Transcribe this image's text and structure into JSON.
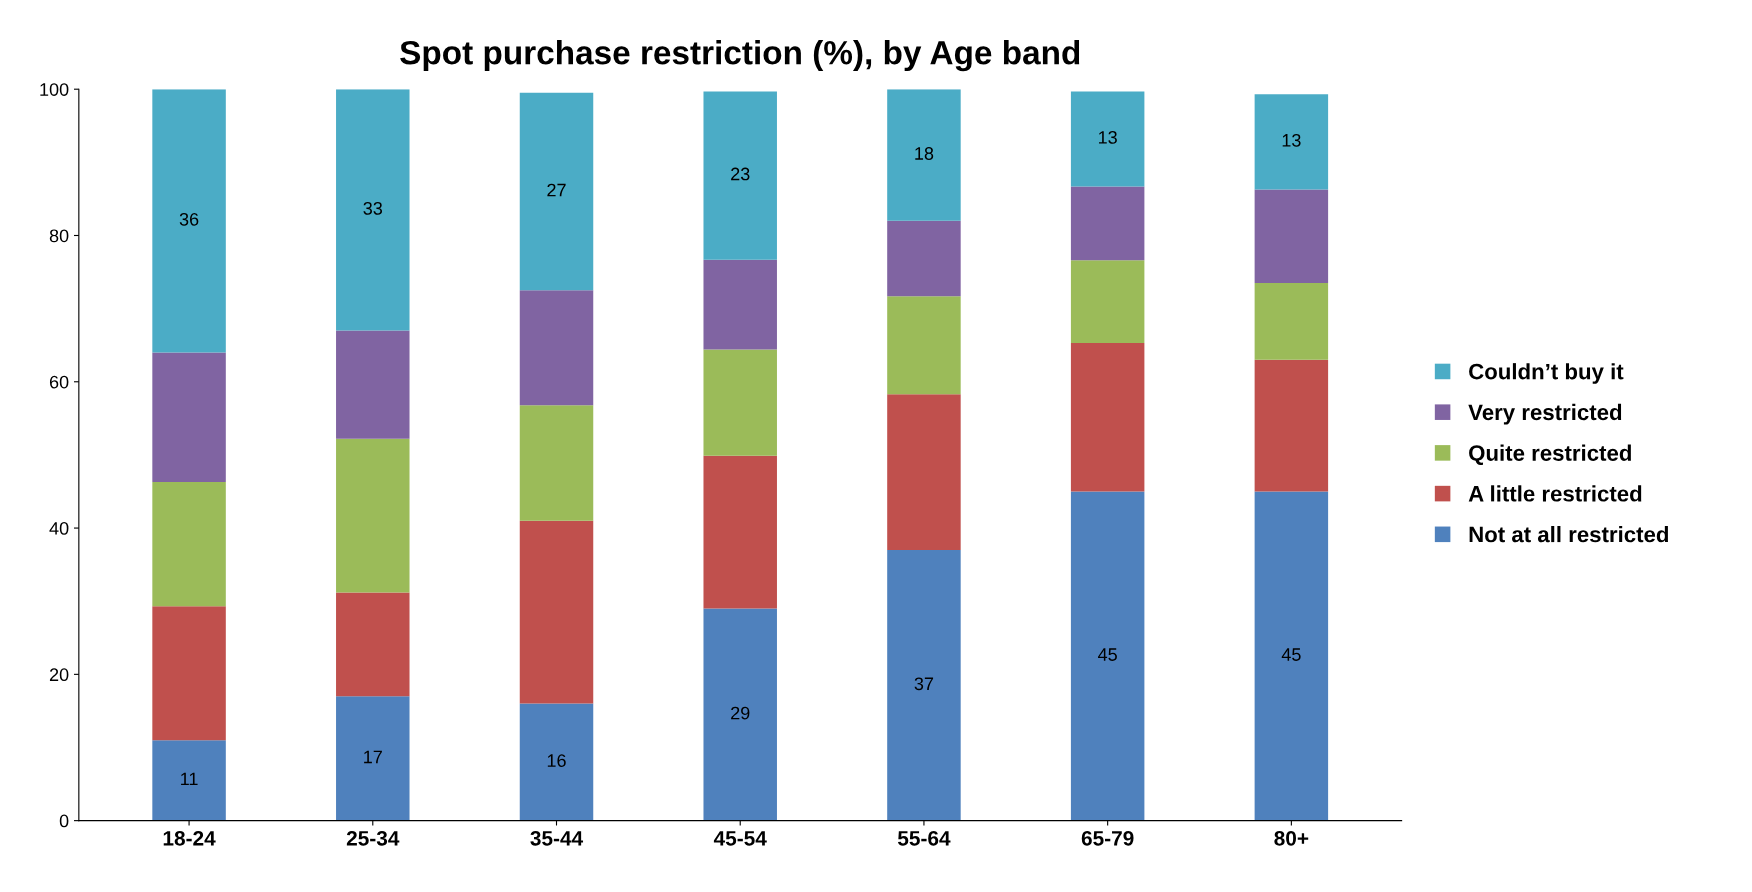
{
  "chart_data": {
    "type": "bar",
    "title": "Spot purchase restriction (%), by Age band",
    "stacked": true,
    "categories": [
      "18-24",
      "25-34",
      "35-44",
      "45-54",
      "55-64",
      "65-79",
      "80+"
    ],
    "series": [
      {
        "name": "Not at all restricted",
        "color": "#4f81bd",
        "values": [
          11,
          17,
          16,
          29,
          37,
          45,
          45
        ],
        "value_labels": [
          "11",
          "17",
          "16",
          "29",
          "37",
          "45",
          "45"
        ]
      },
      {
        "name": "A little restricted",
        "color": "#c0504d",
        "values": [
          18.3,
          14.2,
          25,
          20.9,
          21.3,
          20.3,
          18
        ]
      },
      {
        "name": "Quite restricted",
        "color": "#9bbb59",
        "values": [
          17,
          21,
          15.8,
          14.5,
          13.4,
          11.3,
          10.5
        ]
      },
      {
        "name": "Very restricted",
        "color": "#8064a2",
        "values": [
          17.7,
          14.8,
          15.7,
          12.3,
          10.3,
          10.1,
          12.8
        ]
      },
      {
        "name": "Couldn’t buy it",
        "color": "#4bacc6",
        "values": [
          36,
          33,
          27,
          23,
          18,
          13,
          13
        ],
        "value_labels": [
          "36",
          "33",
          "27",
          "23",
          "18",
          "13",
          "13"
        ]
      }
    ],
    "ylim": [
      0,
      100
    ],
    "yticks": [
      0,
      20,
      40,
      60,
      80,
      100
    ],
    "grid": false,
    "legend": "right"
  }
}
